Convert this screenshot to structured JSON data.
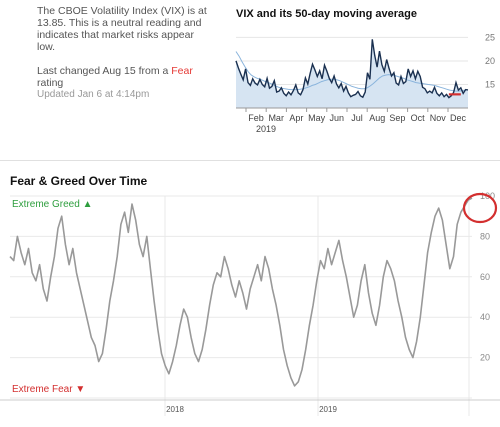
{
  "vix_panel": {
    "description": "The CBOE Volatility Index (VIX) is at 13.85. This is a neutral reading and indicates that market risks appear low.",
    "last_changed_prefix": "Last changed Aug 15 from a",
    "last_changed_rating": "Fear",
    "last_changed_suffix": "rating",
    "updated": "Updated Jan 6 at 4:14pm"
  },
  "fear_greed_panel": {
    "title": "Fear & Greed Over Time",
    "extreme_greed_label": "Extreme Greed",
    "extreme_fear_label": "Extreme Fear"
  },
  "colors": {
    "vix_line": "#1a3050",
    "vix_area": "#d6e4f2",
    "vix_ma": "#8ab4dc",
    "vix_mark": "#d32f2f",
    "fg_line": "#999999",
    "greed": "#2e9e3e",
    "fear": "#d32f2f",
    "circle": "#d32f2f"
  },
  "chart_data": [
    {
      "type": "area",
      "title": "VIX and its 50-day moving average",
      "xlabel": "2019",
      "x_tick_labels": [
        "Feb",
        "Mar",
        "Apr",
        "May",
        "Jun",
        "Jul",
        "Aug",
        "Sep",
        "Oct",
        "Nov",
        "Dec"
      ],
      "y_ticks": [
        15,
        20,
        25
      ],
      "ylim": [
        10,
        27
      ],
      "grid": true,
      "series": [
        {
          "values": [
            20.0,
            18.5,
            17.2,
            16.0,
            18.3,
            15.4,
            14.8,
            16.2,
            15.3,
            14.9,
            16.1,
            15.0,
            14.5,
            16.3,
            14.2,
            14.6,
            15.8,
            13.4,
            13.6,
            14.3,
            13.1,
            12.6,
            13.4,
            12.8,
            13.7,
            14.9,
            13.2,
            12.8,
            13.9,
            16.4,
            15.1,
            17.3,
            19.3,
            18.1,
            16.7,
            17.9,
            16.2,
            19.1,
            17.8,
            16.3,
            15.4,
            16.8,
            15.1,
            14.3,
            15.2,
            13.6,
            14.6,
            13.2,
            12.4,
            12.7,
            12.9,
            13.5,
            12.6,
            12.3,
            13.4,
            17.5,
            16.1,
            24.6,
            21.2,
            18.7,
            22.1,
            19.2,
            17.8,
            20.3,
            18.4,
            16.8,
            17.5,
            15.3,
            14.9,
            16.7,
            15.2,
            15.6,
            18.3,
            16.7,
            17.9,
            16.2,
            17.8,
            16.7,
            14.4,
            14.1,
            13.2,
            13.6,
            13.2,
            14.4,
            13.1,
            12.6,
            13.2,
            12.4,
            12.9,
            12.2,
            12.6,
            13.3,
            15.4,
            13.8,
            14.3,
            13.1,
            13.9,
            13.85
          ]
        },
        {
          "values": [
            22.0,
            21.0,
            19.8,
            18.7,
            17.7,
            17.0,
            16.6,
            16.3,
            16.1,
            15.8,
            15.5,
            15.3,
            15.0,
            14.7,
            14.4,
            14.2,
            14.1,
            14.0,
            13.9,
            13.9,
            13.9,
            14.0,
            14.1,
            14.3,
            14.5,
            14.8,
            15.0,
            15.3,
            15.6,
            15.8,
            16.0,
            16.1,
            16.1,
            16.0,
            15.8,
            15.5,
            15.2,
            14.9,
            14.6,
            14.4,
            14.2,
            14.1,
            14.1,
            14.3,
            14.7,
            15.2,
            15.8,
            16.4,
            16.8,
            17.0,
            17.1,
            17.0,
            16.9,
            16.7,
            16.5,
            16.3,
            16.0,
            15.8,
            15.6,
            15.4,
            15.3,
            15.2,
            15.1,
            15.0,
            14.9,
            14.8,
            14.6,
            14.4,
            14.2,
            14.0,
            13.8,
            13.7,
            13.6,
            13.6,
            13.7,
            13.8,
            13.85
          ]
        }
      ]
    },
    {
      "type": "line",
      "title": "Fear & Greed Over Time",
      "x_tick_labels": [
        "2018",
        "2019"
      ],
      "y_ticks": [
        20,
        40,
        60,
        80,
        100
      ],
      "ylim": [
        0,
        100
      ],
      "grid": true,
      "series": [
        {
          "values": [
            70,
            68,
            80,
            72,
            66,
            74,
            62,
            58,
            66,
            54,
            48,
            60,
            70,
            84,
            90,
            76,
            66,
            74,
            62,
            54,
            46,
            38,
            30,
            26,
            18,
            22,
            34,
            48,
            58,
            70,
            86,
            92,
            82,
            96,
            88,
            76,
            70,
            80,
            64,
            48,
            34,
            22,
            16,
            12,
            18,
            26,
            36,
            44,
            40,
            30,
            22,
            18,
            24,
            34,
            46,
            56,
            62,
            60,
            70,
            64,
            56,
            50,
            58,
            52,
            44,
            54,
            60,
            66,
            58,
            70,
            64,
            54,
            46,
            36,
            24,
            16,
            10,
            6,
            8,
            14,
            24,
            36,
            46,
            58,
            68,
            64,
            74,
            66,
            72,
            78,
            68,
            60,
            50,
            40,
            46,
            58,
            66,
            52,
            42,
            36,
            46,
            60,
            68,
            64,
            58,
            48,
            40,
            30,
            24,
            20,
            28,
            40,
            56,
            72,
            82,
            90,
            94,
            88,
            76,
            64,
            70,
            86,
            92,
            95,
            98,
            99
          ]
        }
      ]
    }
  ]
}
